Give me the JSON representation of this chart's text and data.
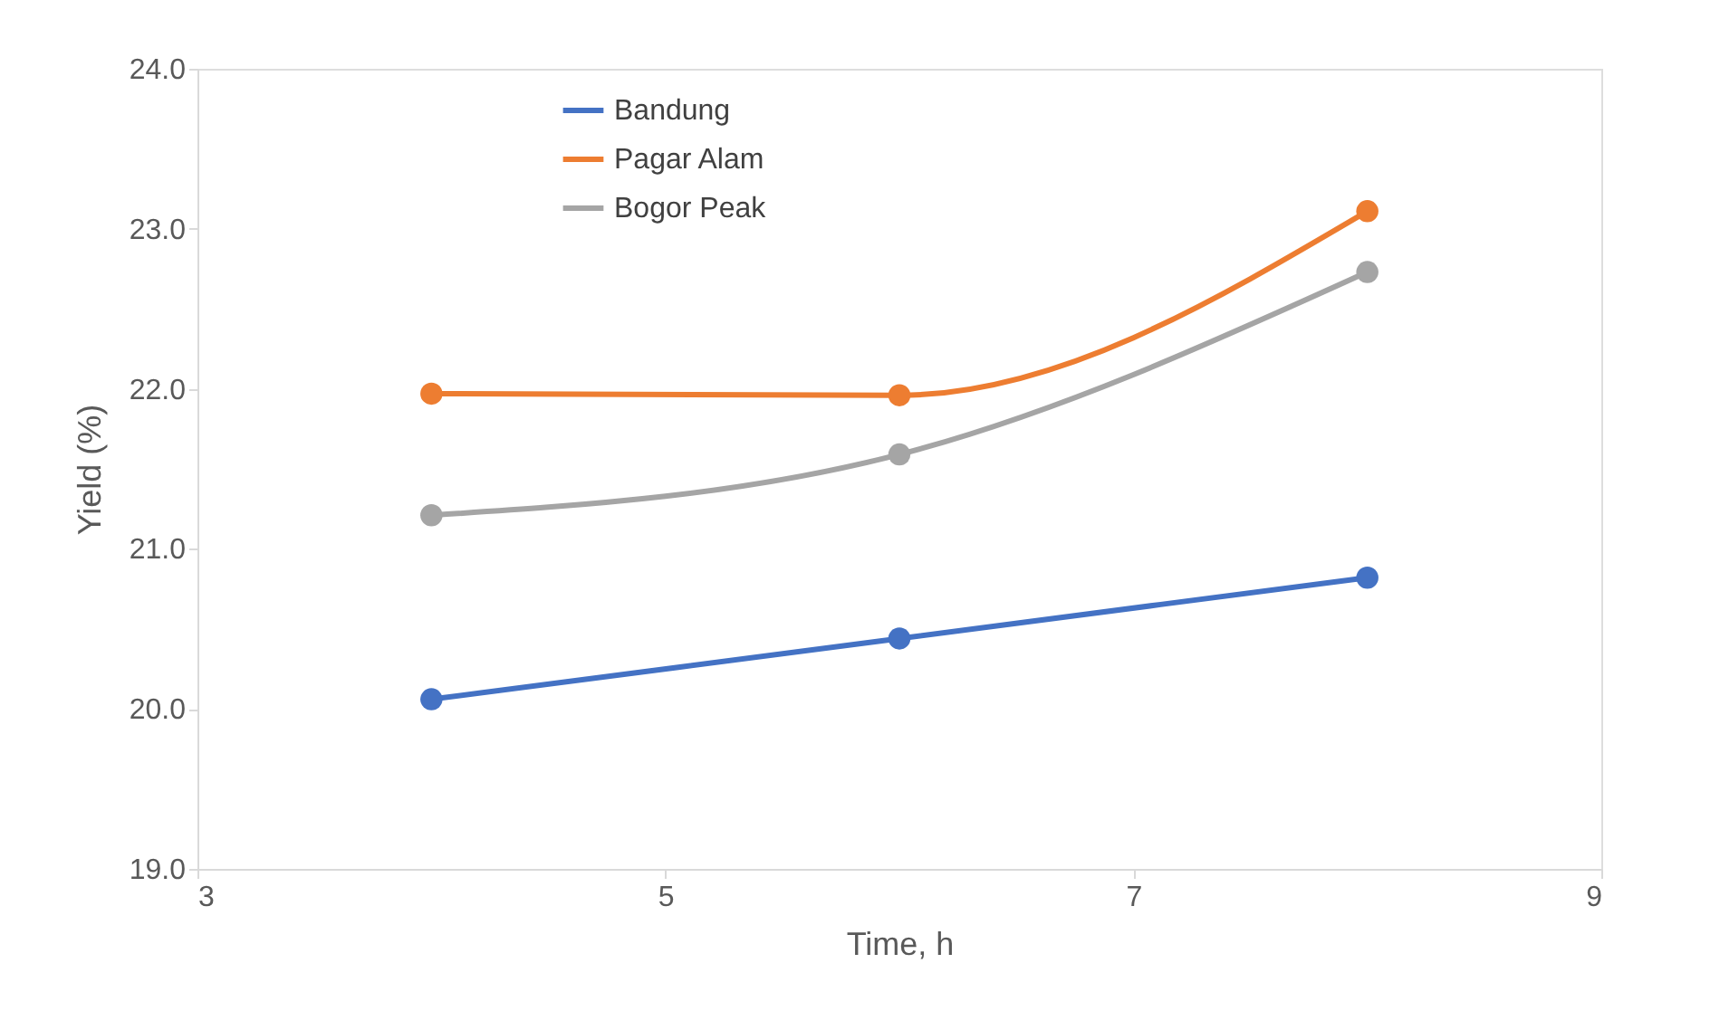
{
  "chart_data": {
    "type": "line",
    "xlabel": "Time, h",
    "ylabel": "Yield (%)",
    "x": [
      4,
      6,
      8
    ],
    "series": [
      {
        "name": "Bandung",
        "color": "#4472c4",
        "values": [
          20.06,
          20.44,
          20.82
        ]
      },
      {
        "name": "Pagar Alam",
        "color": "#ed7d31",
        "values": [
          21.97,
          21.96,
          23.11
        ]
      },
      {
        "name": "Bogor Peak",
        "color": "#a5a5a5",
        "values": [
          21.21,
          21.59,
          22.73
        ]
      }
    ],
    "xlim": [
      3,
      9
    ],
    "xticks": [
      3,
      5,
      7,
      9
    ],
    "ylim": [
      19,
      24
    ],
    "yticks": [
      {
        "value": 19,
        "label": "19.0"
      },
      {
        "value": 20,
        "label": "20.0"
      },
      {
        "value": 21,
        "label": "21.0"
      },
      {
        "value": 22,
        "label": "22.0"
      },
      {
        "value": 23,
        "label": "23.0"
      },
      {
        "value": 24,
        "label": "24.0"
      }
    ],
    "grid": false,
    "legend": "top left",
    "marker": "circle",
    "line_style": "solid"
  }
}
